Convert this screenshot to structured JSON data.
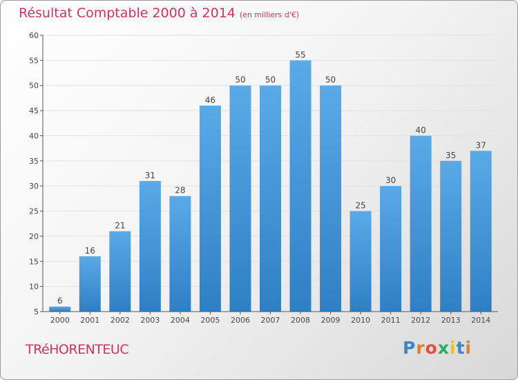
{
  "header": {
    "title": "Résultat Comptable 2000 à 2014",
    "subtitle": "(en milliers d'€)"
  },
  "footer": {
    "town": "TRéHORENTEUC",
    "logo": {
      "letters": [
        "P",
        "r",
        "o",
        "x",
        "i",
        "t",
        "i"
      ],
      "colors": [
        "#3a86c8",
        "#e67e22",
        "#e74c3c",
        "#27ae60",
        "#f1c40f",
        "#3a86c8",
        "#e67e22"
      ]
    }
  },
  "colors": {
    "bar_top": "#5aaae8",
    "bar_bottom": "#2f7fc4",
    "axis": "#555555",
    "grid": "#e2e2e2",
    "text": "#444444",
    "accent": "#d2335f"
  },
  "chart_data": {
    "type": "bar",
    "title": "Résultat Comptable 2000 à 2014",
    "xlabel": "",
    "ylabel": "",
    "categories": [
      "2000",
      "2001",
      "2002",
      "2003",
      "2004",
      "2005",
      "2006",
      "2007",
      "2008",
      "2009",
      "2010",
      "2011",
      "2012",
      "2013",
      "2014"
    ],
    "values": [
      6,
      16,
      21,
      31,
      28,
      46,
      50,
      50,
      55,
      50,
      25,
      30,
      40,
      35,
      37
    ],
    "ylim": [
      5,
      60
    ],
    "yticks": [
      5,
      10,
      15,
      20,
      25,
      30,
      35,
      40,
      45,
      50,
      55,
      60
    ],
    "grid": true,
    "legend": "none"
  }
}
